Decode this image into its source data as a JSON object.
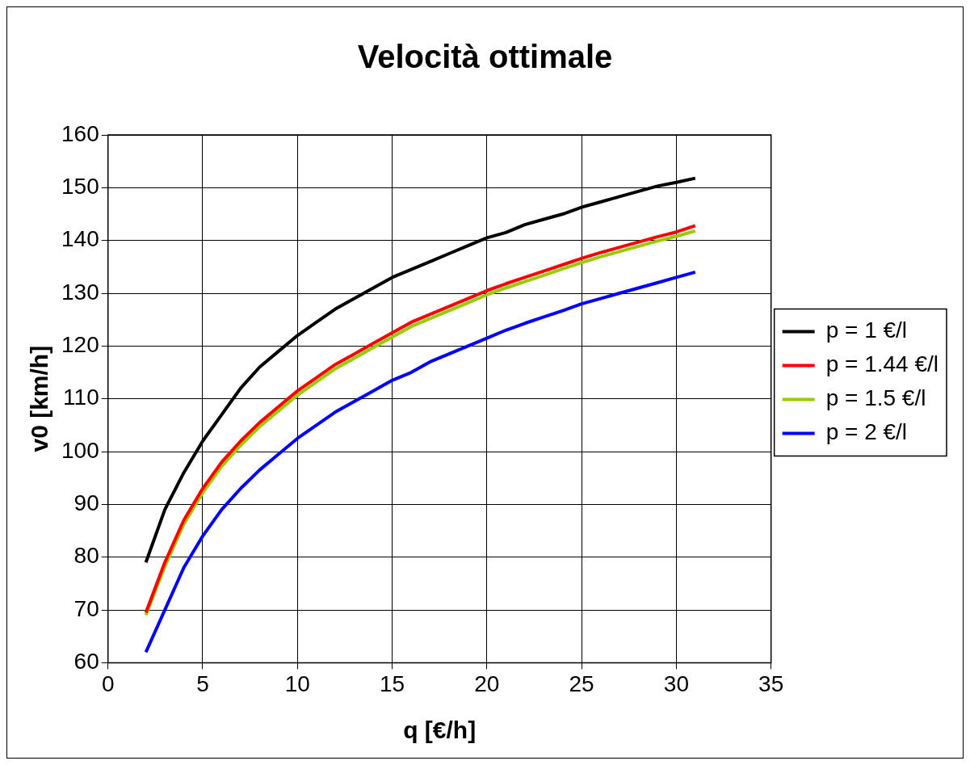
{
  "chart_data": {
    "type": "line",
    "title": "Velocità ottimale",
    "xlabel": "q [€/h]",
    "ylabel": "v0 [km/h]",
    "x": [
      2,
      3,
      4,
      5,
      6,
      7,
      8,
      9,
      10,
      11,
      12,
      13,
      14,
      15,
      16,
      17,
      18,
      19,
      20,
      21,
      22,
      23,
      24,
      25,
      26,
      27,
      28,
      29,
      30,
      31
    ],
    "series": [
      {
        "name": "p = 1 €/l",
        "color": "#000000",
        "values": [
          79,
          89,
          96,
          102,
          107,
          112,
          116,
          119,
          122,
          124.5,
          127,
          129,
          131,
          133,
          134.5,
          136,
          137.5,
          139,
          140.5,
          141.5,
          143,
          144,
          145,
          146.3,
          147.3,
          148.3,
          149.3,
          150.3,
          151,
          151.8
        ]
      },
      {
        "name": "p = 1.44 €/l",
        "color": "#ff0000",
        "values": [
          69.5,
          79,
          87,
          93,
          98,
          102,
          105.5,
          108.5,
          111.5,
          114,
          116.5,
          118.5,
          120.5,
          122.5,
          124.5,
          126,
          127.5,
          129,
          130.5,
          131.8,
          133,
          134.2,
          135.4,
          136.6,
          137.7,
          138.7,
          139.7,
          140.7,
          141.6,
          142.8
        ]
      },
      {
        "name": "p = 1.5 €/l",
        "color": "#99cc00",
        "values": [
          69,
          78.2,
          86.2,
          92.2,
          97.2,
          101.2,
          104.7,
          107.7,
          110.7,
          113.2,
          115.7,
          117.7,
          119.7,
          121.7,
          123.7,
          125.2,
          126.7,
          128.2,
          129.7,
          131,
          132.2,
          133.4,
          134.6,
          135.8,
          136.9,
          137.9,
          138.9,
          139.9,
          140.8,
          141.8
        ]
      },
      {
        "name": "p = 2 €/l",
        "color": "#0000ff",
        "values": [
          62,
          70,
          78,
          84,
          89,
          93,
          96.5,
          99.5,
          102.5,
          105,
          107.5,
          109.5,
          111.5,
          113.5,
          115,
          117,
          118.5,
          120,
          121.5,
          123,
          124.3,
          125.5,
          126.7,
          128,
          129,
          130,
          131,
          132,
          133,
          134
        ]
      }
    ],
    "xlim": [
      0,
      35
    ],
    "xticks": [
      0,
      5,
      10,
      15,
      20,
      25,
      30,
      35
    ],
    "ylim": [
      60,
      160
    ],
    "yticks": [
      60,
      70,
      80,
      90,
      100,
      110,
      120,
      130,
      140,
      150,
      160
    ],
    "grid": true,
    "legend": "right",
    "marker": "none",
    "line_style": "solid"
  }
}
